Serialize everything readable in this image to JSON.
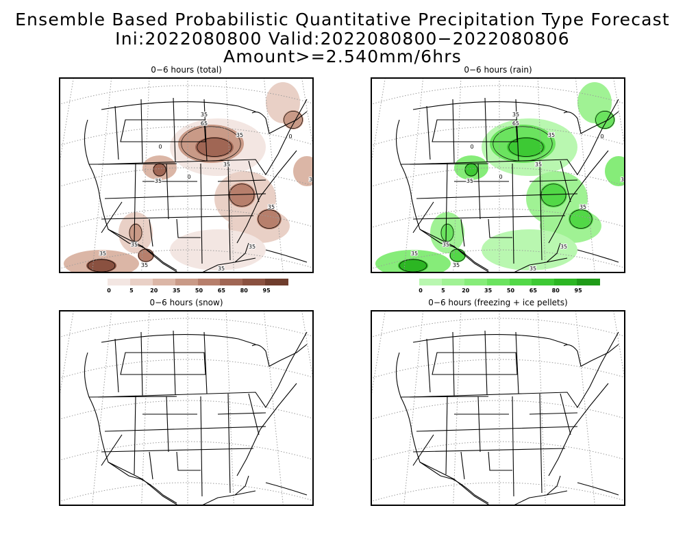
{
  "title": {
    "line1": "Ensemble Based Probabilistic Quantitative Precipitation Type Forecast",
    "line2": "Ini:2022080800 Valid:2022080800−2022080806 Amount>=2.540mm/6hrs"
  },
  "panels": [
    {
      "id": "total",
      "title": "0−6 hours (total)",
      "has_data": true,
      "palette": "brown"
    },
    {
      "id": "rain",
      "title": "0−6 hours (rain)",
      "has_data": true,
      "palette": "green"
    },
    {
      "id": "snow",
      "title": "0−6 hours (snow)",
      "has_data": false
    },
    {
      "id": "freezing",
      "title": "0−6 hours (freezing + ice pellets)",
      "has_data": false
    }
  ],
  "contour_labels": [
    "0",
    "35",
    "65"
  ],
  "legend_total": {
    "labels": [
      "0",
      "5",
      "20",
      "35",
      "50",
      "65",
      "80",
      "95"
    ],
    "colors": [
      "#f3e6e2",
      "#e9d0c6",
      "#dbb6a6",
      "#c99a87",
      "#b77f6c",
      "#a06654",
      "#8a5140",
      "#6f3d2d"
    ]
  },
  "legend_rain": {
    "labels": [
      "0",
      "5",
      "20",
      "35",
      "50",
      "65",
      "80",
      "95"
    ],
    "colors": [
      "#b9f7b0",
      "#a0f294",
      "#86ec79",
      "#6be35f",
      "#52d847",
      "#3dc934",
      "#2cb623",
      "#1f9b18"
    ]
  }
}
